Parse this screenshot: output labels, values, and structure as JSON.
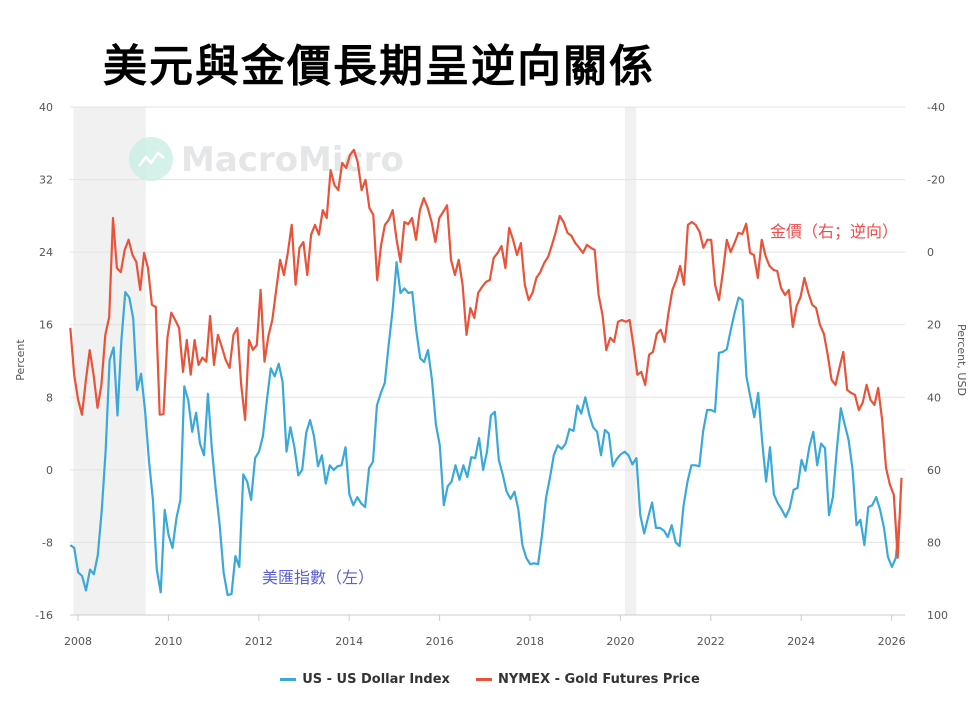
{
  "title": "美元與金價長期呈逆向關係",
  "watermark": "MacroMicro",
  "colors": {
    "usd": "#3aa9d9",
    "gold": "#e9533a",
    "recession": "#f1f1f1",
    "grid": "#e3e3e3",
    "gold_note": "#f04a4a",
    "usd_note": "#5a5fd6"
  },
  "chart_data": {
    "type": "line",
    "title": "美元與金價長期呈逆向關係",
    "xlabel": "",
    "ylabel_left": "Percent",
    "ylabel_right": "Percent, USD",
    "ylim_left": [
      -16,
      40
    ],
    "ylim_right": [
      100,
      -40
    ],
    "right_axis_inverted": true,
    "xlim": [
      2007.82,
      2026.3
    ],
    "x_ticks": [
      "2008",
      "2010",
      "2012",
      "2014",
      "2016",
      "2018",
      "2020",
      "2022",
      "2024",
      "2026"
    ],
    "y_ticks_left": [
      "40",
      "32",
      "24",
      "16",
      "8",
      "0",
      "-8",
      "-16"
    ],
    "y_ticks_right": [
      "-40",
      "-20",
      "0",
      "20",
      "40",
      "60",
      "80",
      "100"
    ],
    "grid": true,
    "legend_position": "bottom",
    "recessions": [
      [
        2007.9,
        2009.5
      ],
      [
        2020.1,
        2020.35
      ]
    ],
    "annotations": {
      "gold": "金價（右；逆向）",
      "usd": "美匯指數（左）"
    },
    "series": [
      {
        "name": "US - US Dollar Index",
        "axis": "left",
        "x_start": 2007.83,
        "x_end": 2026.18,
        "values": [
          -8.3,
          -8.6,
          -11.3,
          -11.7,
          -13.3,
          -11,
          -11.5,
          -9.4,
          -4.4,
          2.2,
          12.1,
          13.5,
          6,
          14.3,
          19.6,
          19,
          16.7,
          8.8,
          10.6,
          6.6,
          1.1,
          -3.3,
          -11,
          -13.5,
          -4.4,
          -7.2,
          -8.6,
          -5.3,
          -3.3,
          9.2,
          7.7,
          4.2,
          6.3,
          2.9,
          1.6,
          8.4,
          2.4,
          -2.2,
          -6.1,
          -11.3,
          -13.8,
          -13.7,
          -9.5,
          -10.7,
          -0.5,
          -1.3,
          -3.3,
          1.3,
          2,
          3.7,
          7.7,
          11.2,
          10.3,
          11.7,
          9.7,
          2,
          4.7,
          2.5,
          -0.6,
          0,
          4.1,
          5.5,
          3.7,
          0.4,
          1.6,
          -1.5,
          0.5,
          0,
          0.4,
          0.5,
          2.5,
          -2.7,
          -3.9,
          -3,
          -3.7,
          -4.1,
          0.2,
          0.9,
          7.1,
          8.5,
          9.6,
          13.8,
          17.6,
          22.9,
          19.5,
          20,
          19.5,
          19.6,
          15.4,
          12.3,
          11.9,
          13.2,
          9.9,
          5,
          2.7,
          -3.9,
          -1.8,
          -1.3,
          0.5,
          -1.1,
          0.5,
          -0.8,
          1.4,
          1.3,
          3.5,
          0,
          2,
          6,
          6.4,
          1.1,
          -0.5,
          -2.4,
          -3.2,
          -2.4,
          -4.4,
          -8.3,
          -9.7,
          -10.4,
          -10.3,
          -10.4,
          -7.2,
          -3.1,
          -0.9,
          1.6,
          2.7,
          2.3,
          2.9,
          4.5,
          4.3,
          7.1,
          6.2,
          8,
          6.1,
          4.7,
          4.2,
          1.6,
          4.4,
          4,
          0.4,
          1.2,
          1.7,
          2,
          1.6,
          0.6,
          1.3,
          -5,
          -7,
          -5.2,
          -3.6,
          -6.4,
          -6.4,
          -6.7,
          -7.4,
          -6.1,
          -8,
          -8.4,
          -4,
          -1.3,
          0.5,
          0.5,
          0.4,
          4.3,
          6.6,
          6.6,
          6.4,
          12.9,
          13,
          13.3,
          15.4,
          17.3,
          19,
          18.7,
          10.3,
          8,
          5.8,
          8.5,
          3.1,
          -1.3,
          2.5,
          -2.7,
          -3.7,
          -4.4,
          -5.2,
          -4.2,
          -2.2,
          -2,
          1.1,
          -0.1,
          2.5,
          4.2,
          0.5,
          2.9,
          2.4,
          -5,
          -3,
          2.2,
          6.8,
          5,
          3.3,
          0,
          -6.1,
          -5.5,
          -8.3,
          -4.1,
          -3.9,
          -3,
          -4.4,
          -6.4,
          -9.6,
          -10.7,
          -9.7,
          -5.2
        ]
      },
      {
        "name": "NYMEX - Gold Futures Price",
        "axis": "right",
        "x_start": 2007.83,
        "x_end": 2026.22,
        "values": [
          20.9,
          33.8,
          40.7,
          44.8,
          35.2,
          27,
          33.8,
          42.9,
          36.6,
          22.8,
          17.9,
          -9.4,
          4.4,
          5.5,
          -0.6,
          -3.4,
          0.8,
          2.7,
          10.4,
          0.2,
          4.4,
          14.5,
          15.1,
          44.8,
          44.6,
          23.6,
          16.7,
          18.7,
          20.9,
          33,
          24.2,
          33.8,
          24.2,
          31.1,
          29.1,
          30.2,
          17.6,
          31.1,
          22.8,
          26.1,
          29.7,
          31.9,
          22.8,
          20.9,
          36.6,
          46.2,
          24.2,
          26.9,
          25.6,
          10.4,
          30.2,
          23.1,
          18.7,
          10.4,
          2.1,
          6.3,
          0.2,
          -7.5,
          9,
          -1.2,
          -2.8,
          6.3,
          -4.8,
          -7.5,
          -4.8,
          -11.6,
          -9.4,
          -22.6,
          -18.5,
          -17.1,
          -24.6,
          -23.2,
          -26.8,
          -28.2,
          -24.8,
          -17.1,
          -19.9,
          -12.2,
          -10.3,
          7.7,
          -2,
          -7.5,
          -8.9,
          -11.6,
          -3.4,
          2.7,
          -8.3,
          -7.7,
          -9.4,
          -3.4,
          -11.6,
          -14.9,
          -12.2,
          -8.3,
          -2.8,
          -9.4,
          -11.1,
          -12.9,
          2.1,
          6.3,
          2.1,
          9,
          22.8,
          15.4,
          18.1,
          11.2,
          9.6,
          8.2,
          7.7,
          1.6,
          0.2,
          -1.7,
          4.4,
          -6.7,
          -3.4,
          0.8,
          -2.5,
          9,
          13.2,
          11.2,
          7.1,
          5.5,
          3,
          1.3,
          -2,
          -5.6,
          -10,
          -8.3,
          -5.3,
          -4.5,
          -2.5,
          -1.2,
          0.2,
          -2,
          -1.2,
          -0.6,
          11.8,
          17.3,
          27,
          23.6,
          24.7,
          19.2,
          18.7,
          19.2,
          18.7,
          25.8,
          33.8,
          33,
          36.6,
          28.3,
          27.5,
          22.5,
          21.4,
          24.7,
          16.7,
          10.4,
          7.7,
          3.8,
          9,
          -7.5,
          -8.3,
          -7.5,
          -5.6,
          -1.2,
          -3.4,
          -3.4,
          9,
          13.2,
          5.5,
          -3.4,
          0,
          -2.5,
          -5.3,
          -5,
          -7.8,
          0.2,
          0.8,
          7.1,
          -3.4,
          1.1,
          3.8,
          4.9,
          5.2,
          9.9,
          11.8,
          10.4,
          20.6,
          14.8,
          12.3,
          7.1,
          11.2,
          14.5,
          15.4,
          20.1,
          22.5,
          28.3,
          35.2,
          36.6,
          31.9,
          27.5,
          38,
          38.8,
          39.3,
          43.5,
          41.5,
          36.6,
          40.7,
          42.1,
          37.4,
          46.2,
          59.4,
          64.1,
          66.9,
          84.2,
          62.2
        ]
      }
    ]
  }
}
